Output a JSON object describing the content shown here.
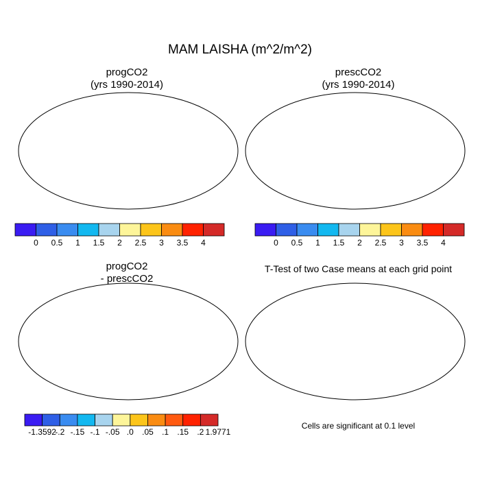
{
  "title": "MAM LAISHA (m^2/m^2)",
  "panels": [
    {
      "title_line1": "progCO2",
      "title_line2": "(yrs 1990-2014)",
      "type": "field"
    },
    {
      "title_line1": "prescCO2",
      "title_line2": "(yrs 1990-2014)",
      "type": "field"
    },
    {
      "title_line1": "progCO2",
      "title_line2": "- prescCO2",
      "type": "difference"
    },
    {
      "title_line1": "T-Test of two Case means at each grid point",
      "type": "significance",
      "note": "Cells are significant at 0.1 level",
      "significance_color": "#ff0000"
    }
  ],
  "colorbar_field": {
    "colors": [
      "#3a1cf2",
      "#2f5fe6",
      "#3a8cf0",
      "#13b8f0",
      "#a8d4ee",
      "#fdf59a",
      "#fcc51a",
      "#fa8c12",
      "#ff2200",
      "#d42a28"
    ],
    "labels": [
      "0",
      "0.5",
      "1",
      "1.5",
      "2",
      "2.5",
      "3",
      "3.5",
      "4"
    ]
  },
  "colorbar_diff": {
    "colors": [
      "#3a1cf2",
      "#2f5fe6",
      "#3a8cf0",
      "#13b8f0",
      "#a8d4ee",
      "#fdf59a",
      "#fcc51a",
      "#fa8c12",
      "#ff5a10",
      "#ff2200",
      "#d42a28"
    ],
    "labels": [
      "-1.3592",
      "-.2",
      "-.15",
      "-.1",
      "-.05",
      ".0",
      ".05",
      ".1",
      ".15",
      ".2",
      "1.9771"
    ]
  }
}
